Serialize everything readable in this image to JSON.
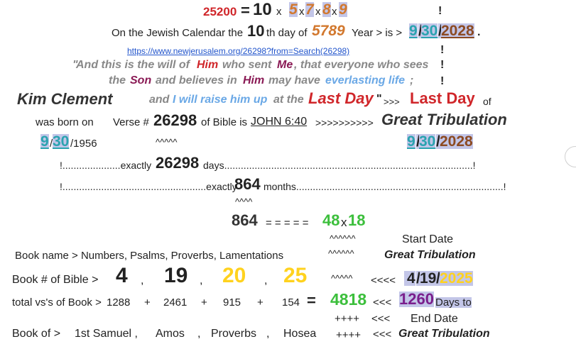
{
  "row1": {
    "num": "25200",
    "eq": "=",
    "ten": "10",
    "x1": "x",
    "d1": "5",
    "x2": "x",
    "d2": "7",
    "x3": "x",
    "d3": "8",
    "x4": "x",
    "d4": "9",
    "excl": "!"
  },
  "row2": {
    "pre": "On the Jewish Calendar the",
    "day": "10",
    "th": "th day of",
    "year": "5789",
    "post": "Year >  is >",
    "m": "9",
    "s1": "/",
    "d": "30",
    "s2": "/",
    "y": "2028",
    "dot": "."
  },
  "link": {
    "text": "https://www.newjerusalem.org/26298?from=Search(26298)",
    "excl": "!"
  },
  "quote1": {
    "q": "\"",
    "a": "And this is the will of",
    "him": "Him",
    "b": "who sent",
    "me": "Me",
    ", that everyone who sees": "",
    "c": ", that everyone who sees",
    "excl": "!"
  },
  "quote2": {
    "a": "the",
    "son": "Son",
    "b": "and believes in",
    "him": "Him",
    "c": "may have",
    "life": "everlasting life",
    "semi": ";",
    "excl": "!"
  },
  "row5": {
    "kim": "Kim Clement",
    "a": "and",
    "b": "I will raise him up",
    "c": "at the",
    "last": "Last Day",
    "q": "\"",
    "arrows": ">>>",
    "last2": "Last Day",
    "of": "of"
  },
  "row6": {
    "born": "was born on",
    "verse": "Verse #",
    "num": "26298",
    "of": "of Bible is",
    "ref": "JOHN 6:40",
    "arrows": ">>>>>>>>>>",
    "gt": "Great Tribulation"
  },
  "row7": {
    "m": "9",
    "s1": "/",
    "d": "30",
    "y": "/1956",
    "carets": "^^^^^",
    "m2": "9",
    "s2": "/",
    "d2": "30",
    "s3": "/",
    "y2": "2028"
  },
  "row8": {
    "pre": "!.....................exactly",
    "num": "26298",
    "post": "days..........................................................................................!"
  },
  "row9": {
    "pre": "!....................................................exactly",
    "num": "864",
    "post": "months...........................................................................!",
    "carets": "^^^^"
  },
  "row10": {
    "num": "864",
    "eqs": "= = = = =",
    "a": "48",
    "x": "x",
    "b": "18"
  },
  "books": {
    "start": "Start Date",
    "gt1": "Great Tribulation",
    "names": "Book name > Numbers,    Psalms,     Proverbs,   Lamentations",
    "carets1": "^^^^^^",
    "carets2": "^^^^^^",
    "carets3": "^^^^^",
    "num_label": "Book # of Bible >",
    "n1": "4",
    "c1": ",",
    "n2": "19",
    "c2": ",",
    "n3": "20",
    "c3": ",",
    "n4": "25",
    "arr1": "<<<<",
    "sd_m": "4",
    "sd_s1": "/",
    "sd_d": "19",
    "sd_s2": "/",
    "sd_y": "2025",
    "vs_label": "total vs's of Book >",
    "v1": "1288",
    "p1": "+",
    "v2": "2461",
    "p2": "+",
    "v3": "915",
    "p3": "+",
    "v4": "154",
    "eq": "=",
    "sum": "4818",
    "arr2": "<<<",
    "days": "1260",
    "days_to": "Days to",
    "plus1": "++++",
    "arr3": "<<<",
    "end": "End Date",
    "bo_label": "Book of >",
    "b1": "1st Samuel ,",
    "b2": "Amos",
    "c4": ",",
    "b3": "Proverbs",
    "c5": ",",
    "b4": "Hosea",
    "plus2": "++++",
    "arr4": "<<<",
    "gt2": "Great Tribulation"
  },
  "colors": {
    "red": "#d0262a",
    "orange": "#d2782e",
    "teal": "#2aa3b0",
    "brown": "#8c4a22",
    "green": "#3cbf3c",
    "yellow": "#ffd21e",
    "highlight": "#c3c6e8"
  }
}
